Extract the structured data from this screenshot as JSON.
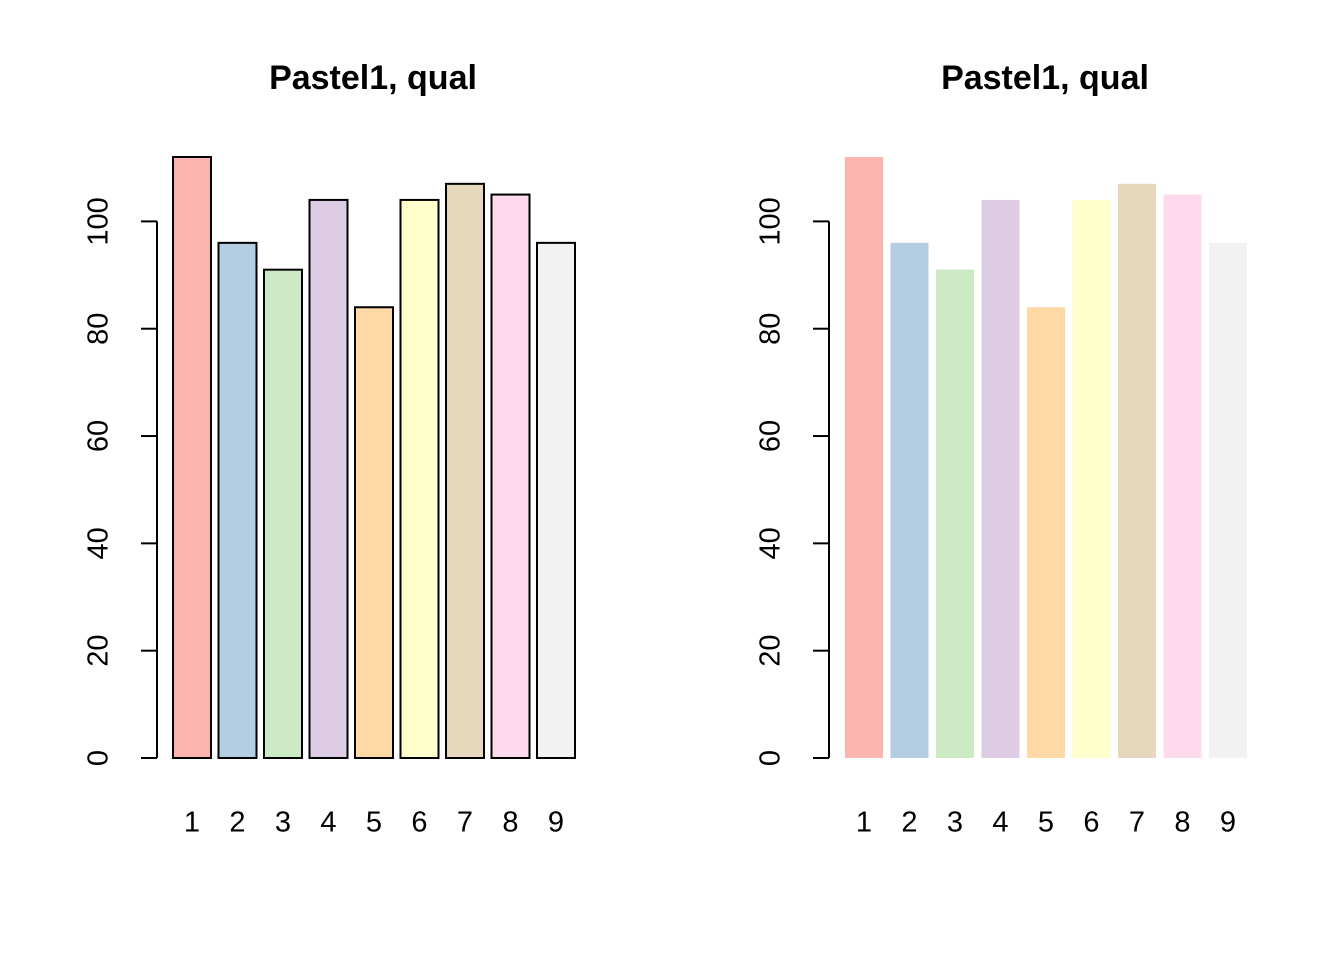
{
  "chart_data": [
    {
      "type": "bar",
      "title": "Pastel1, qual",
      "categories": [
        "1",
        "2",
        "3",
        "4",
        "5",
        "6",
        "7",
        "8",
        "9"
      ],
      "values": [
        112,
        96,
        91,
        104,
        84,
        104,
        107,
        105,
        96
      ],
      "colors": [
        "#FBB4AE",
        "#B3CDE3",
        "#CCEBC5",
        "#DECBE4",
        "#FED9A6",
        "#FFFFCC",
        "#E5D8BD",
        "#FDDAEC",
        "#F2F2F2"
      ],
      "ylim": [
        0,
        112
      ],
      "yticks": [
        0,
        20,
        40,
        60,
        80,
        100
      ],
      "border": true
    },
    {
      "type": "bar",
      "title": "Pastel1, qual",
      "categories": [
        "1",
        "2",
        "3",
        "4",
        "5",
        "6",
        "7",
        "8",
        "9"
      ],
      "values": [
        112,
        96,
        91,
        104,
        84,
        104,
        107,
        105,
        96
      ],
      "colors": [
        "#FBB4AE",
        "#B3CDE3",
        "#CCEBC5",
        "#DECBE4",
        "#FED9A6",
        "#FFFFCC",
        "#E5D8BD",
        "#FDDAEC",
        "#F2F2F2"
      ],
      "ylim": [
        0,
        112
      ],
      "yticks": [
        0,
        20,
        40,
        60,
        80,
        100
      ],
      "border": false
    }
  ]
}
